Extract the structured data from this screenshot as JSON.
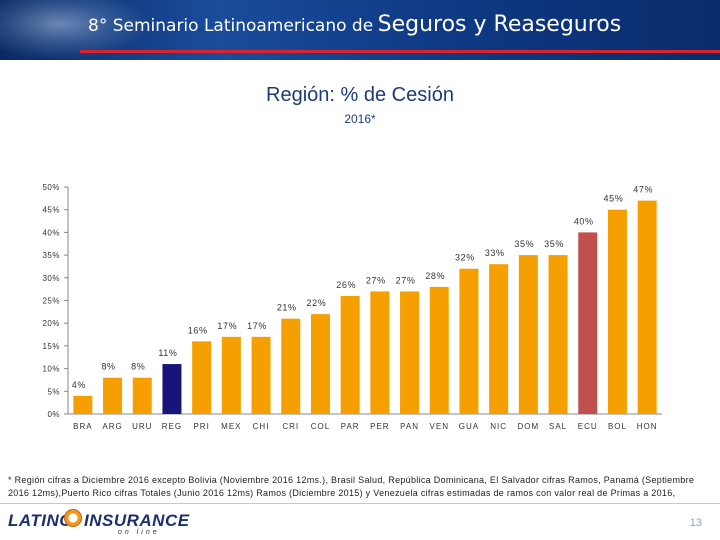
{
  "banner": {
    "title_small": "8° Seminario Latinoamericano de",
    "title_big": "Seguros y Reaseguros"
  },
  "slide": {
    "title": "Región:  % de Cesión",
    "subtitle": "2016*",
    "footnote": "* Región cifras a Diciembre 2016 excepto Bolivia (Noviembre 2016 12ms.), Brasil Salud, República Dominicana, El Salvador cifras Ramos, Panamá (Septiembre 2016 12ms),Puerto Rico cifras Totales (Junio 2016 12ms) Ramos (Diciembre 2015) y Venezuela cifras estimadas de ramos con valor real de Primas a 2016,",
    "page_number": "13"
  },
  "logo": {
    "latino": "LATINO",
    "insurance": "INSURANCE",
    "online": "on line"
  },
  "colors": {
    "default_bar": "#f5a000",
    "region_bar": "#17147a",
    "highlight_bar": "#c0504d",
    "banner_accent": "#d9232d"
  },
  "chart_data": {
    "type": "bar",
    "title": "Región:  % de Cesión",
    "subtitle": "2016*",
    "categories": [
      "BRA",
      "ARG",
      "URU",
      "REG",
      "PRI",
      "MEX",
      "CHI",
      "CRI",
      "COL",
      "PAR",
      "PER",
      "PAN",
      "VEN",
      "GUA",
      "NIC",
      "DOM",
      "SAL",
      "ECU",
      "BOL",
      "HON"
    ],
    "values": [
      4,
      8,
      8,
      11,
      16,
      17,
      17,
      21,
      22,
      26,
      27,
      27,
      28,
      32,
      33,
      35,
      35,
      40,
      45,
      47
    ],
    "labels": [
      "4%",
      "8%",
      "8%",
      "11%",
      "16%",
      "17%",
      "17%",
      "21%",
      "22%",
      "26%",
      "27%",
      "27%",
      "28%",
      "32%",
      "33%",
      "35%",
      "35%",
      "40%",
      "45%",
      "47%"
    ],
    "bar_styles": [
      "default",
      "default",
      "default",
      "region",
      "default",
      "default",
      "default",
      "default",
      "default",
      "default",
      "default",
      "default",
      "default",
      "default",
      "default",
      "default",
      "default",
      "highlight",
      "default",
      "default"
    ],
    "ylim": [
      0,
      50
    ],
    "yticks": [
      0,
      5,
      10,
      15,
      20,
      25,
      30,
      35,
      40,
      45,
      50
    ],
    "ytick_labels": [
      "0%",
      "5%",
      "10%",
      "15%",
      "20%",
      "25%",
      "30%",
      "35%",
      "40%",
      "45%",
      "50%"
    ],
    "grid": false,
    "xlabel": "",
    "ylabel": ""
  }
}
